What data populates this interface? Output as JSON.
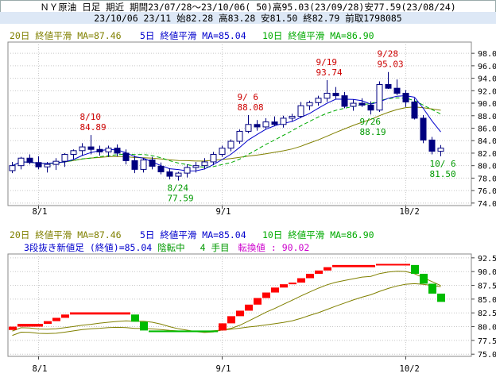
{
  "header": {
    "line1": "ＮＹ原油 日足 期近 期間23/07/28～23/10/06( 50)高95.03(23/09/28)安77.59(23/08/24)",
    "line2": "23/10/06 23/11 始82.28 高83.28 安81.50 終82.79 前取1798085"
  },
  "colors": {
    "ma20": "#808000",
    "ma5": "#0000cc",
    "ma10": "#00aa00",
    "candle_up": "#ffffff",
    "candle_down": "#000080",
    "brick_up": "#ff0000",
    "brick_down": "#00bb00",
    "annot_high": "#cc0000",
    "annot_low": "#009900"
  },
  "main_chart": {
    "ma_labels": {
      "ma20": "20日 終値平滑 MA=87.46",
      "ma5": "5日 終値平滑 MA=85.04",
      "ma10": "10日 終値平滑 MA=86.90"
    },
    "annotations": [
      {
        "date": "8/10",
        "value": "84.89",
        "idx": 9,
        "kind": "high"
      },
      {
        "date": "8/24",
        "value": "77.59",
        "idx": 19,
        "kind": "low"
      },
      {
        "date": "9/ 6",
        "value": "88.08",
        "idx": 27,
        "kind": "high"
      },
      {
        "date": "9/19",
        "value": "93.74",
        "idx": 36,
        "kind": "high"
      },
      {
        "date": "9/26",
        "value": "88.19",
        "idx": 41,
        "kind": "low"
      },
      {
        "date": "9/28",
        "value": "95.03",
        "idx": 43,
        "kind": "high"
      },
      {
        "date": "10/ 6",
        "value": "81.50",
        "idx": 49,
        "kind": "low"
      }
    ]
  },
  "sub_chart": {
    "ma_labels": {
      "ma20": "20日 終値平滑 MA=87.46",
      "ma5": "5日 終値平滑 MA=85.04",
      "ma10": "10日 終値平滑 MA=86.90"
    },
    "info": {
      "prefix": "3段抜き新値足 (終値)=85.04",
      "state": "陰転中",
      "count": "4 手目",
      "reversal": "転換値 : 90.02"
    }
  },
  "chart_data": [
    {
      "type": "candlestick",
      "title": "ＮＹ原油 日足 期近",
      "x_tick_labels": [
        "8/1",
        "9/1",
        "10/2"
      ],
      "x_tick_index": [
        3,
        24,
        45
      ],
      "y_ticks": [
        74,
        76,
        78,
        80,
        82,
        84,
        86,
        88,
        90,
        92,
        94,
        96,
        98
      ],
      "ylim": [
        73.6,
        99.8
      ],
      "ohlc": [
        [
          79.2,
          80.6,
          78.8,
          80.0
        ],
        [
          80.0,
          81.4,
          79.4,
          81.2
        ],
        [
          81.2,
          81.8,
          80.2,
          80.5
        ],
        [
          80.5,
          81.5,
          79.4,
          79.8
        ],
        [
          79.8,
          80.6,
          78.9,
          80.2
        ],
        [
          80.2,
          81.2,
          79.3,
          80.7
        ],
        [
          80.7,
          82.0,
          79.8,
          81.8
        ],
        [
          81.8,
          82.6,
          81.0,
          82.4
        ],
        [
          82.4,
          83.6,
          81.6,
          83.0
        ],
        [
          83.0,
          84.9,
          81.8,
          82.6
        ],
        [
          82.6,
          83.2,
          81.6,
          82.2
        ],
        [
          82.2,
          83.2,
          81.4,
          82.8
        ],
        [
          82.8,
          83.4,
          81.5,
          82.0
        ],
        [
          82.0,
          82.6,
          80.2,
          80.8
        ],
        [
          80.8,
          81.6,
          78.8,
          79.4
        ],
        [
          79.4,
          81.2,
          78.9,
          80.9
        ],
        [
          80.9,
          81.4,
          79.4,
          79.9
        ],
        [
          79.9,
          80.5,
          78.6,
          79.0
        ],
        [
          79.0,
          79.6,
          77.8,
          78.3
        ],
        [
          78.3,
          79.0,
          77.6,
          78.8
        ],
        [
          78.8,
          80.2,
          78.1,
          79.7
        ],
        [
          79.7,
          80.6,
          78.9,
          80.0
        ],
        [
          80.0,
          81.2,
          79.4,
          80.6
        ],
        [
          80.6,
          82.2,
          80.1,
          81.8
        ],
        [
          81.8,
          83.2,
          81.4,
          82.8
        ],
        [
          82.8,
          84.2,
          82.3,
          83.9
        ],
        [
          83.9,
          85.8,
          83.5,
          85.5
        ],
        [
          85.5,
          88.1,
          85.2,
          86.6
        ],
        [
          86.6,
          87.3,
          85.6,
          86.2
        ],
        [
          86.2,
          87.6,
          85.8,
          87.0
        ],
        [
          87.0,
          87.9,
          86.3,
          86.6
        ],
        [
          86.6,
          88.0,
          86.1,
          87.6
        ],
        [
          87.6,
          88.3,
          87.1,
          87.9
        ],
        [
          87.9,
          90.2,
          87.6,
          89.6
        ],
        [
          89.6,
          90.4,
          88.9,
          90.1
        ],
        [
          90.1,
          91.2,
          89.6,
          90.8
        ],
        [
          90.8,
          93.7,
          90.2,
          91.6
        ],
        [
          91.6,
          92.6,
          90.6,
          91.2
        ],
        [
          91.2,
          91.8,
          89.2,
          89.5
        ],
        [
          89.5,
          90.6,
          88.8,
          90.0
        ],
        [
          90.0,
          90.8,
          89.4,
          89.7
        ],
        [
          89.7,
          90.3,
          88.2,
          88.9
        ],
        [
          88.9,
          93.5,
          88.6,
          93.0
        ],
        [
          93.0,
          95.0,
          92.3,
          92.4
        ],
        [
          92.4,
          93.8,
          91.3,
          91.6
        ],
        [
          91.6,
          92.1,
          89.4,
          90.2
        ],
        [
          90.2,
          90.8,
          87.4,
          87.6
        ],
        [
          87.6,
          88.1,
          83.6,
          84.1
        ],
        [
          84.1,
          84.6,
          81.8,
          82.3
        ],
        [
          82.3,
          83.3,
          81.5,
          82.8
        ]
      ]
    },
    {
      "type": "bar",
      "title": "3段抜き新値足 (終値)",
      "x_tick_labels": [
        "8/1",
        "9/1",
        "10/2"
      ],
      "y_ticks": [
        75,
        77.5,
        80,
        82.5,
        85,
        87.5,
        90,
        92.5
      ],
      "ylim": [
        74.6,
        93.2
      ],
      "bricks": [
        {
          "lo": 79.4,
          "hi": 80.0,
          "dir": "up",
          "idx": 0,
          "w": 1
        },
        {
          "lo": 80.0,
          "hi": 80.5,
          "dir": "up",
          "idx": 1,
          "w": 3
        },
        {
          "lo": 80.5,
          "hi": 81.0,
          "dir": "up",
          "idx": 4,
          "w": 1
        },
        {
          "lo": 81.0,
          "hi": 81.6,
          "dir": "up",
          "idx": 5,
          "w": 1
        },
        {
          "lo": 81.6,
          "hi": 82.2,
          "dir": "up",
          "idx": 6,
          "w": 1
        },
        {
          "lo": 82.2,
          "hi": 82.6,
          "dir": "up",
          "idx": 7,
          "w": 7
        },
        {
          "lo": 80.9,
          "hi": 82.2,
          "dir": "down",
          "idx": 14,
          "w": 1
        },
        {
          "lo": 79.3,
          "hi": 80.9,
          "dir": "down",
          "idx": 15,
          "w": 1
        },
        {
          "lo": 79.0,
          "hi": 79.3,
          "dir": "down",
          "idx": 16,
          "w": 8
        },
        {
          "lo": 79.3,
          "hi": 80.6,
          "dir": "up",
          "idx": 24,
          "w": 1
        },
        {
          "lo": 80.6,
          "hi": 81.9,
          "dir": "up",
          "idx": 25,
          "w": 1
        },
        {
          "lo": 81.9,
          "hi": 82.9,
          "dir": "up",
          "idx": 26,
          "w": 1
        },
        {
          "lo": 82.9,
          "hi": 84.0,
          "dir": "up",
          "idx": 27,
          "w": 1
        },
        {
          "lo": 84.0,
          "hi": 85.2,
          "dir": "up",
          "idx": 28,
          "w": 1
        },
        {
          "lo": 85.2,
          "hi": 86.2,
          "dir": "up",
          "idx": 29,
          "w": 1
        },
        {
          "lo": 86.2,
          "hi": 87.1,
          "dir": "up",
          "idx": 30,
          "w": 1
        },
        {
          "lo": 87.1,
          "hi": 87.7,
          "dir": "up",
          "idx": 31,
          "w": 1
        },
        {
          "lo": 87.7,
          "hi": 88.0,
          "dir": "up",
          "idx": 32,
          "w": 1
        },
        {
          "lo": 88.0,
          "hi": 88.8,
          "dir": "up",
          "idx": 33,
          "w": 1
        },
        {
          "lo": 88.8,
          "hi": 89.6,
          "dir": "up",
          "idx": 34,
          "w": 1
        },
        {
          "lo": 89.6,
          "hi": 90.2,
          "dir": "up",
          "idx": 35,
          "w": 1
        },
        {
          "lo": 90.2,
          "hi": 90.8,
          "dir": "up",
          "idx": 36,
          "w": 1
        },
        {
          "lo": 90.8,
          "hi": 91.2,
          "dir": "up",
          "idx": 37,
          "w": 5
        },
        {
          "lo": 91.2,
          "hi": 91.4,
          "dir": "up",
          "idx": 42,
          "w": 4
        },
        {
          "lo": 89.6,
          "hi": 91.2,
          "dir": "down",
          "idx": 46,
          "w": 1
        },
        {
          "lo": 87.8,
          "hi": 89.6,
          "dir": "down",
          "idx": 47,
          "w": 1
        },
        {
          "lo": 86.0,
          "hi": 87.8,
          "dir": "down",
          "idx": 48,
          "w": 1
        },
        {
          "lo": 84.5,
          "hi": 86.0,
          "dir": "down",
          "idx": 49,
          "w": 1
        }
      ]
    }
  ]
}
